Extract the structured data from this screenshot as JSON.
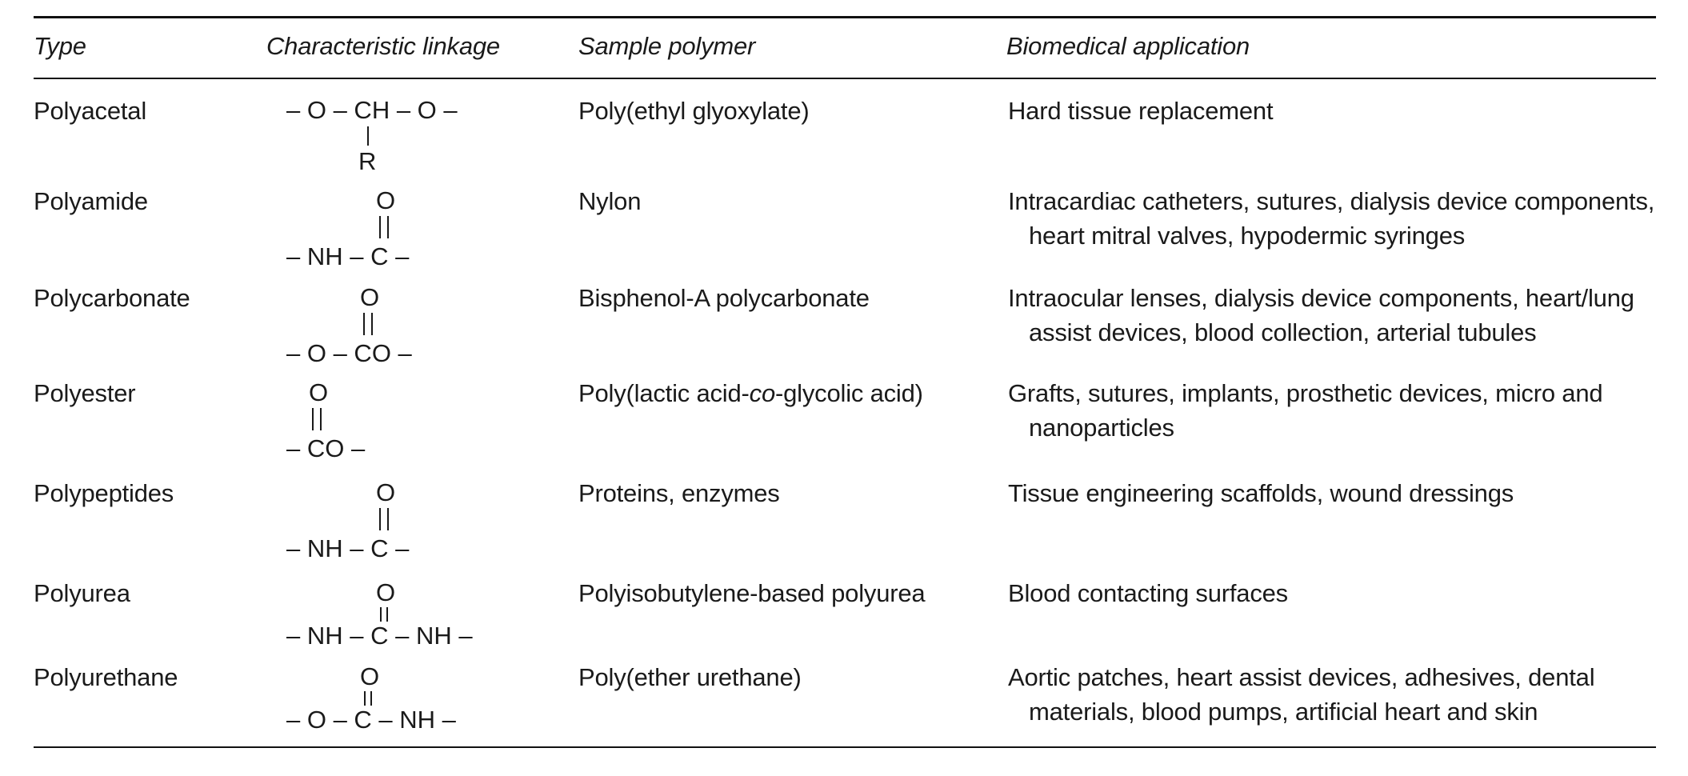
{
  "caption_fragment": "",
  "headers": {
    "type": "Type",
    "linkage": "Characteristic linkage",
    "sample": "Sample polymer",
    "application": "Biomedical application"
  },
  "rows": [
    {
      "type": "Polyacetal",
      "linkage": {
        "main": "– O – CH – O –",
        "below": "R"
      },
      "sample": "Poly(ethyl glyoxylate)",
      "application": [
        "Hard tissue replacement"
      ]
    },
    {
      "type": "Polyamide",
      "linkage": {
        "above": "O",
        "main": "– NH – C –"
      },
      "sample": "Nylon",
      "application": [
        "Intracardiac catheters, sutures, dialysis device components,",
        "heart mitral valves, hypodermic syringes"
      ]
    },
    {
      "type": "Polycarbonate",
      "linkage": {
        "above": "O",
        "main": "– O – CO –"
      },
      "sample": "Bisphenol-A polycarbonate",
      "application": [
        "Intraocular lenses, dialysis device components, heart/lung",
        "assist devices, blood collection, arterial tubules"
      ]
    },
    {
      "type": "Polyester",
      "linkage": {
        "above": "O",
        "main": "– CO –"
      },
      "sample_parts": [
        "Poly(lactic acid-",
        "co",
        "-glycolic acid)"
      ],
      "application": [
        "Grafts, sutures, implants, prosthetic devices, micro and",
        "nanoparticles"
      ]
    },
    {
      "type": "Polypeptides",
      "linkage": {
        "above": "O",
        "main": "– NH – C –"
      },
      "sample": "Proteins, enzymes",
      "application": [
        "Tissue engineering scaffolds, wound dressings"
      ]
    },
    {
      "type": "Polyurea",
      "linkage": {
        "above": "O",
        "main": "– NH – C – NH –"
      },
      "sample": "Polyisobutylene-based polyurea",
      "application": [
        "Blood contacting surfaces"
      ]
    },
    {
      "type": "Polyurethane",
      "linkage": {
        "above": "O",
        "main": "– O – C – NH –"
      },
      "sample": "Poly(ether urethane)",
      "application": [
        "Aortic patches, heart assist devices, adhesives, dental",
        "materials, blood pumps, artificial heart and skin"
      ]
    }
  ]
}
